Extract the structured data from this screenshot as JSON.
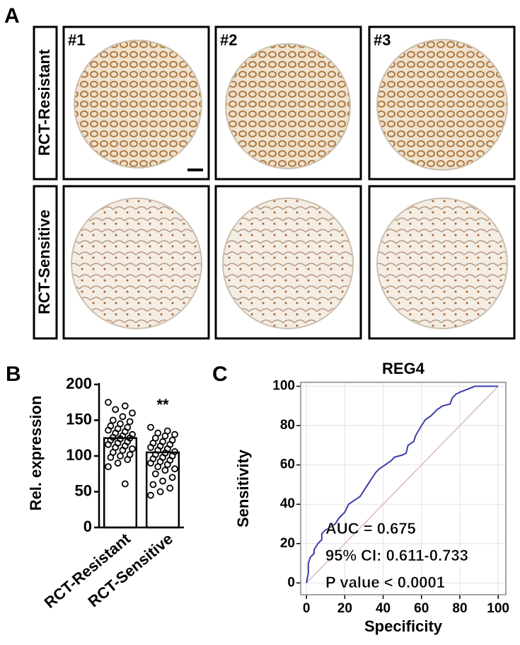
{
  "panels": {
    "a": "A",
    "b": "B",
    "c": "C"
  },
  "images": {
    "columns": [
      "#1",
      "#2",
      "#3"
    ],
    "rows": [
      "RCT-Resistant",
      "RCT-Sensitive"
    ]
  },
  "chart_data": [
    {
      "type": "bar",
      "ylabel": "Rel. expression",
      "categories": [
        "RCT-Resistant",
        "RCT-Sensitive"
      ],
      "values": [
        125,
        105
      ],
      "color": "#ffffff",
      "points": [
        [
          175,
          170,
          165,
          160,
          155,
          150,
          148,
          145,
          142,
          140,
          138,
          136,
          134,
          132,
          130,
          128,
          126,
          125,
          124,
          122,
          120,
          118,
          116,
          114,
          112,
          110,
          108,
          105,
          102,
          100,
          98,
          95,
          90,
          85,
          61
        ],
        [
          140,
          135,
          132,
          130,
          128,
          125,
          122,
          120,
          118,
          116,
          114,
          112,
          110,
          108,
          106,
          104,
          102,
          100,
          98,
          96,
          94,
          92,
          90,
          88,
          85,
          82,
          80,
          75,
          70,
          65,
          60,
          55,
          50,
          45
        ]
      ],
      "annotation": "**",
      "ylim": [
        0,
        200
      ],
      "yticks": [
        0,
        50,
        100,
        150,
        200
      ]
    },
    {
      "type": "line",
      "title": "REG4",
      "xlabel": "Specificity",
      "ylabel": "Sensitivity",
      "x": [
        0,
        1,
        1,
        2,
        4,
        4,
        6,
        8,
        8,
        10,
        12,
        15,
        17,
        20,
        22,
        25,
        28,
        30,
        32,
        34,
        36,
        38,
        41,
        44,
        46,
        50,
        52,
        53,
        56,
        57,
        60,
        62,
        65,
        68,
        71,
        75,
        76,
        78,
        80,
        88,
        100
      ],
      "series": [
        {
          "color": "#3b3ea8",
          "values": [
            0,
            5,
            10,
            13,
            15,
            17,
            20,
            22,
            25,
            27,
            28,
            30,
            33,
            36,
            40,
            42,
            44,
            47,
            50,
            53,
            56,
            58,
            60,
            62,
            64,
            65,
            66,
            70,
            72,
            75,
            80,
            83,
            85,
            88,
            90,
            91,
            94,
            96,
            97,
            100,
            100
          ]
        }
      ],
      "reference": {
        "x": [
          0,
          100
        ],
        "values": [
          0,
          100
        ],
        "color": "#d9b9c2"
      },
      "annotations": [
        "AUC = 0.675",
        "95% CI: 0.611-0.733",
        "P value < 0.0001"
      ],
      "xlim": [
        -3,
        104
      ],
      "ylim": [
        -6,
        102
      ],
      "xticks": [
        0,
        20,
        40,
        60,
        80,
        100
      ],
      "yticks": [
        0,
        20,
        40,
        60,
        80,
        100
      ],
      "grid": true
    }
  ]
}
